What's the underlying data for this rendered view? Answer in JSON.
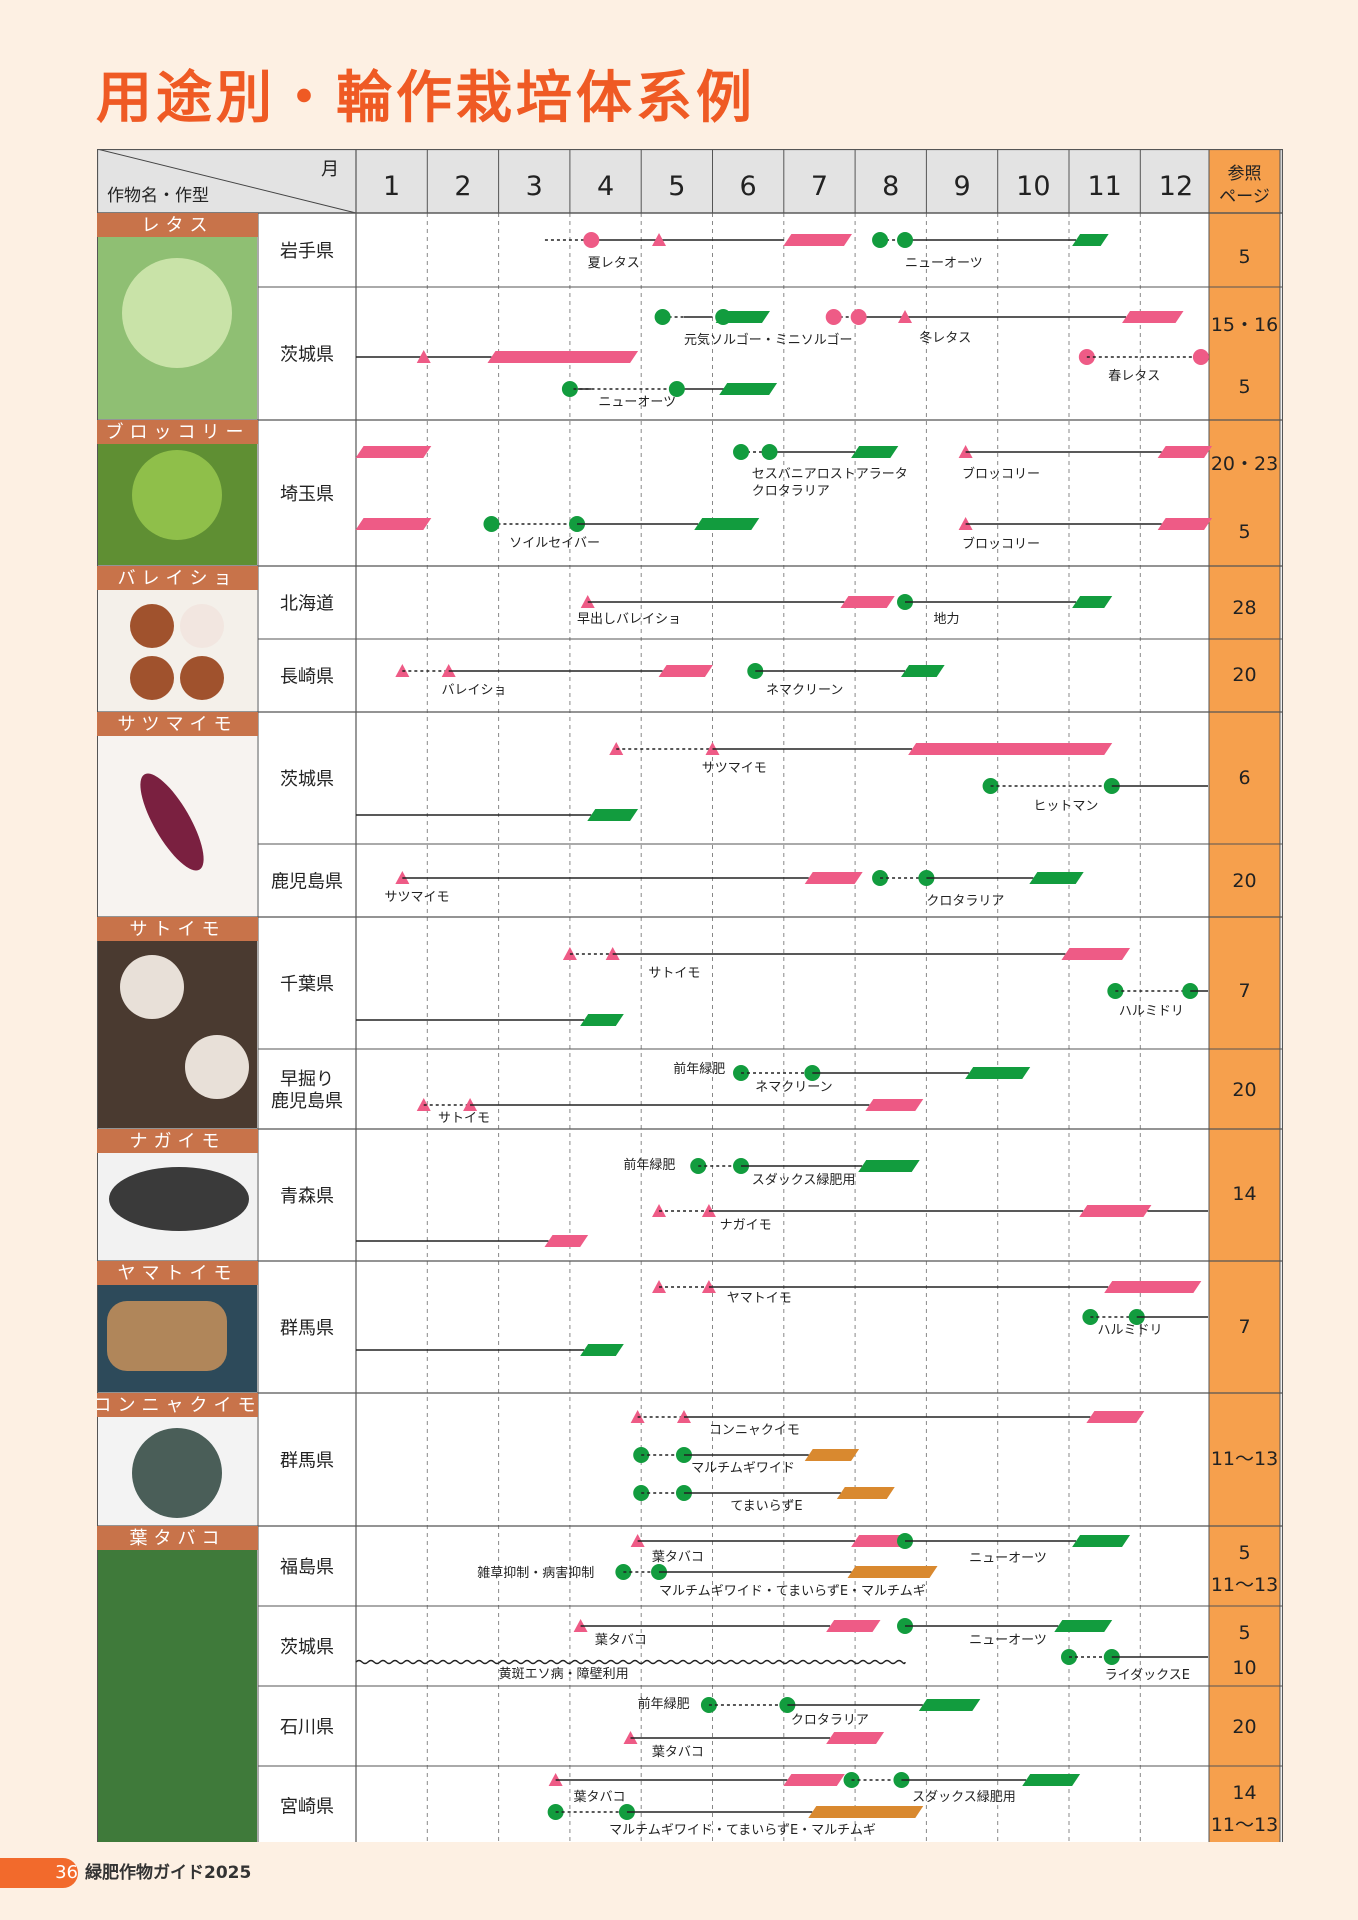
{
  "page": {
    "title": "用途別・輪作栽培体系例",
    "page_number": "36",
    "guide_title": "緑肥作物ガイド2025"
  },
  "colors": {
    "crop_bar": "#ee5b86",
    "green_manure_bar": "#129c3e",
    "mulch_bar": "#d9892f",
    "ref_column": "#f6a04d",
    "crop_label_bg": "#c8734a",
    "grid_line": "#555555",
    "cell_bg": "#ffffff"
  },
  "header": {
    "month_label": "月",
    "crop_label": "作物名・作型",
    "months": [
      "1",
      "2",
      "3",
      "4",
      "5",
      "6",
      "7",
      "8",
      "9",
      "10",
      "11",
      "12"
    ],
    "ref_line1": "参照",
    "ref_line2": "ページ"
  },
  "crops": [
    {
      "name": "レタス",
      "image": "lettuce-photo"
    },
    {
      "name": "ブロッコリー",
      "image": "broccoli-photo"
    },
    {
      "name": "バレイショ",
      "image": "potato-photo"
    },
    {
      "name": "サツマイモ",
      "image": "sweet-potato-photo"
    },
    {
      "name": "サトイモ",
      "image": "taro-photo"
    },
    {
      "name": "ナガイモ",
      "image": "chinese-yam-photo"
    },
    {
      "name": "ヤマトイモ",
      "image": "yamato-yam-photo"
    },
    {
      "name": "コンニャクイモ",
      "image": "konjac-photo"
    },
    {
      "name": "葉タバコ",
      "image": "tobacco-field-photo"
    }
  ],
  "rows": [
    {
      "region": [
        "岩手県"
      ],
      "refs": [
        {
          "text": "5"
        }
      ],
      "labels": [
        {
          "text": "夏レタス"
        },
        {
          "text": "ニューオーツ"
        }
      ]
    },
    {
      "region": [
        "茨城県"
      ],
      "refs": [
        {
          "text": "15・16"
        },
        {
          "text": "5"
        }
      ],
      "labels": [
        {
          "text": "元気ソルゴー・ミニソルゴー"
        },
        {
          "text": "冬レタス"
        },
        {
          "text": "春レタス"
        },
        {
          "text": "ニューオーツ"
        }
      ]
    },
    {
      "region": [
        "埼玉県"
      ],
      "refs": [
        {
          "text": "20・23"
        },
        {
          "text": "5"
        }
      ],
      "labels": [
        {
          "text": "セスバニアロストアラータ"
        },
        {
          "text": "クロタラリア"
        },
        {
          "text": "ブロッコリー"
        },
        {
          "text": "ソイルセイバー"
        },
        {
          "text": "ブロッコリー"
        }
      ]
    },
    {
      "region": [
        "北海道"
      ],
      "refs": [
        {
          "text": "28"
        }
      ],
      "labels": [
        {
          "text": "早出しバレイショ"
        },
        {
          "text": "地力"
        }
      ]
    },
    {
      "region": [
        "長崎県"
      ],
      "refs": [
        {
          "text": "20"
        }
      ],
      "labels": [
        {
          "text": "バレイショ"
        },
        {
          "text": "ネマクリーン"
        }
      ]
    },
    {
      "region": [
        "茨城県"
      ],
      "refs": [
        {
          "text": "6"
        }
      ],
      "labels": [
        {
          "text": "サツマイモ"
        },
        {
          "text": "ヒットマン"
        }
      ]
    },
    {
      "region": [
        "鹿児島県"
      ],
      "refs": [
        {
          "text": "20"
        }
      ],
      "labels": [
        {
          "text": "サツマイモ"
        },
        {
          "text": "クロタラリア"
        }
      ]
    },
    {
      "region": [
        "千葉県"
      ],
      "refs": [
        {
          "text": "7"
        }
      ],
      "labels": [
        {
          "text": "サトイモ"
        },
        {
          "text": "ハルミドリ"
        }
      ]
    },
    {
      "region": [
        "早掘り",
        "鹿児島県"
      ],
      "refs": [
        {
          "text": "20"
        }
      ],
      "labels": [
        {
          "text": "前年緑肥"
        },
        {
          "text": "ネマクリーン"
        },
        {
          "text": "サトイモ"
        }
      ]
    },
    {
      "region": [
        "青森県"
      ],
      "refs": [
        {
          "text": "14"
        }
      ],
      "labels": [
        {
          "text": "前年緑肥"
        },
        {
          "text": "スダックス緑肥用"
        },
        {
          "text": "ナガイモ"
        }
      ]
    },
    {
      "region": [
        "群馬県"
      ],
      "refs": [
        {
          "text": "7"
        }
      ],
      "labels": [
        {
          "text": "ヤマトイモ"
        },
        {
          "text": "ハルミドリ"
        }
      ]
    },
    {
      "region": [
        "群馬県"
      ],
      "refs": [
        {
          "text": "11〜13"
        }
      ],
      "labels": [
        {
          "text": "コンニャクイモ"
        },
        {
          "text": "マルチムギワイド"
        },
        {
          "text": "てまいらずE"
        }
      ]
    },
    {
      "region": [
        "福島県"
      ],
      "refs": [
        {
          "text": "5"
        },
        {
          "text": "11〜13"
        }
      ],
      "labels": [
        {
          "text": "葉タバコ"
        },
        {
          "text": "ニューオーツ"
        },
        {
          "text": "雑草抑制・病害抑制"
        },
        {
          "text": "マルチムギワイド・てまいらずE・マルチムギ"
        }
      ]
    },
    {
      "region": [
        "茨城県"
      ],
      "refs": [
        {
          "text": "5"
        },
        {
          "text": "10"
        }
      ],
      "labels": [
        {
          "text": "葉タバコ"
        },
        {
          "text": "ニューオーツ"
        },
        {
          "text": "黄斑エソ病・障壁利用"
        },
        {
          "text": "ライダックスE"
        }
      ]
    },
    {
      "region": [
        "石川県"
      ],
      "refs": [
        {
          "text": "20"
        }
      ],
      "labels": [
        {
          "text": "前年緑肥"
        },
        {
          "text": "クロタラリア"
        },
        {
          "text": "葉タバコ"
        }
      ]
    },
    {
      "region": [
        "宮崎県"
      ],
      "refs": [
        {
          "text": "14"
        },
        {
          "text": "11〜13"
        }
      ],
      "labels": [
        {
          "text": "葉タバコ"
        },
        {
          "text": "スダックス緑肥用"
        },
        {
          "text": "マルチムギワイド・てまいらずE・マルチムギ"
        }
      ]
    }
  ]
}
